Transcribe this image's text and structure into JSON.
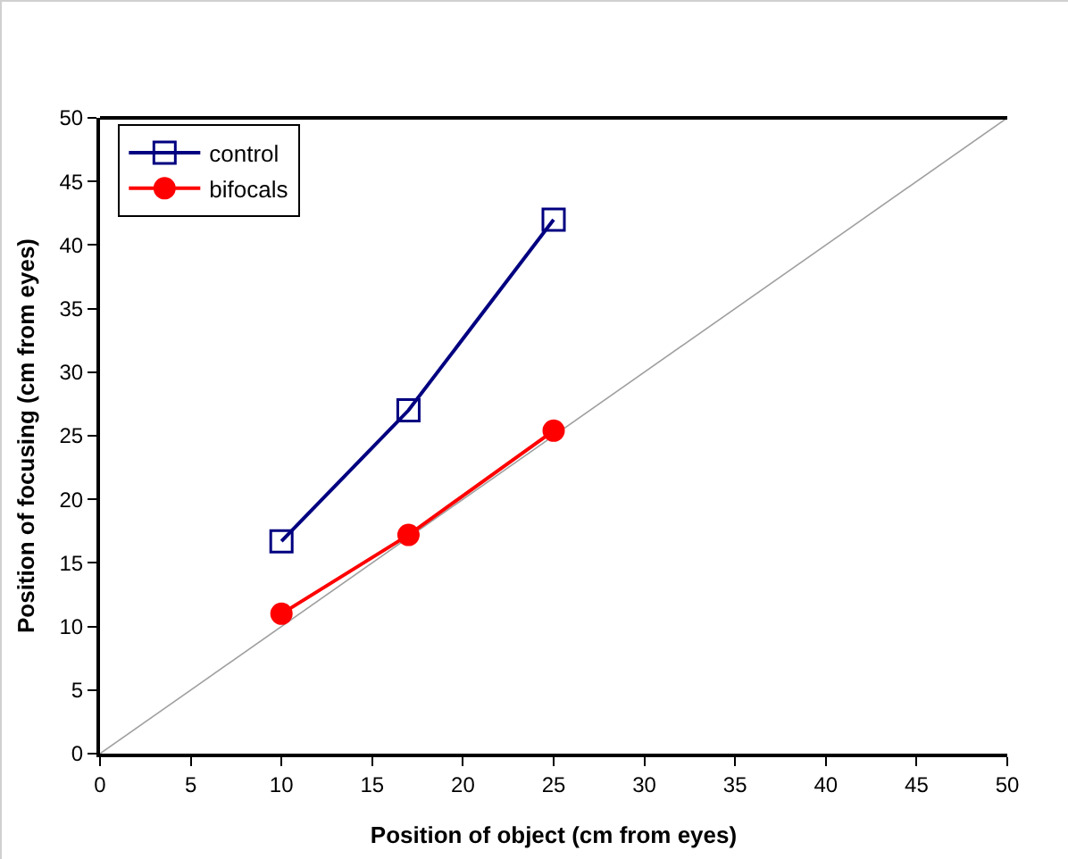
{
  "chart_data": {
    "type": "line",
    "xlabel": "Position of object (cm from eyes)",
    "ylabel": "Position of focusing (cm from eyes)",
    "x": [
      10,
      17,
      25
    ],
    "series": [
      {
        "name": "control",
        "color": "#000080",
        "values": [
          16.7,
          27,
          42
        ],
        "marker": "square"
      },
      {
        "name": "bifocals",
        "color": "#ff0000",
        "values": [
          11,
          17.2,
          25.4
        ],
        "marker": "circle"
      },
      {
        "color": "#a0a0a0",
        "x": [
          0,
          50
        ],
        "values": [
          0,
          50
        ],
        "marker": "none"
      }
    ],
    "xlim": [
      0,
      50
    ],
    "ylim": [
      0,
      50
    ],
    "xticks": [
      0,
      5,
      10,
      15,
      20,
      25,
      30,
      35,
      40,
      45,
      50
    ],
    "yticks": [
      0,
      5,
      10,
      15,
      20,
      25,
      30,
      35,
      40,
      45,
      50
    ],
    "grid": false,
    "legend": "top left",
    "line_style": "solid"
  }
}
